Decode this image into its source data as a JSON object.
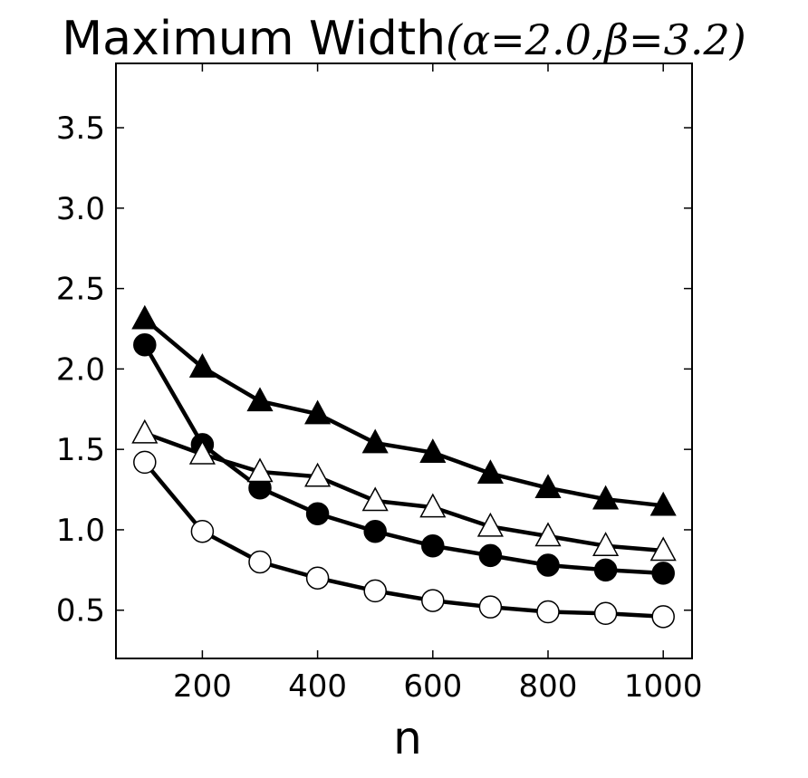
{
  "chart_data": {
    "type": "line",
    "title": "Maximum Width",
    "title_math": "(α=2.0,β=3.2)",
    "xlabel": "n",
    "ylabel": "",
    "xlim": [
      50,
      1050
    ],
    "ylim": [
      0.2,
      3.9
    ],
    "xticks": [
      200,
      400,
      600,
      800,
      1000
    ],
    "xtick_labels": [
      "200",
      "400",
      "600",
      "800",
      "1000"
    ],
    "yticks": [
      0.5,
      1.0,
      1.5,
      2.0,
      2.5,
      3.0,
      3.5
    ],
    "ytick_labels": [
      "0.5",
      "1.0",
      "1.5",
      "2.0",
      "2.5",
      "3.0",
      "3.5"
    ],
    "grid": false,
    "x": [
      100,
      200,
      300,
      400,
      500,
      600,
      700,
      800,
      900,
      1000
    ],
    "series": [
      {
        "marker": "triangle-filled",
        "color": "#000000",
        "values": [
          2.31,
          2.01,
          1.8,
          1.72,
          1.54,
          1.48,
          1.35,
          1.26,
          1.19,
          1.15
        ]
      },
      {
        "marker": "circle-filled",
        "color": "#000000",
        "values": [
          2.15,
          1.53,
          1.26,
          1.1,
          0.99,
          0.9,
          0.84,
          0.78,
          0.75,
          0.73
        ]
      },
      {
        "marker": "triangle-open",
        "color": "#000000",
        "values": [
          1.6,
          1.47,
          1.36,
          1.33,
          1.18,
          1.14,
          1.02,
          0.96,
          0.9,
          0.87
        ]
      },
      {
        "marker": "circle-open",
        "color": "#000000",
        "values": [
          1.42,
          0.99,
          0.8,
          0.7,
          0.62,
          0.56,
          0.52,
          0.49,
          0.48,
          0.46
        ]
      }
    ]
  }
}
